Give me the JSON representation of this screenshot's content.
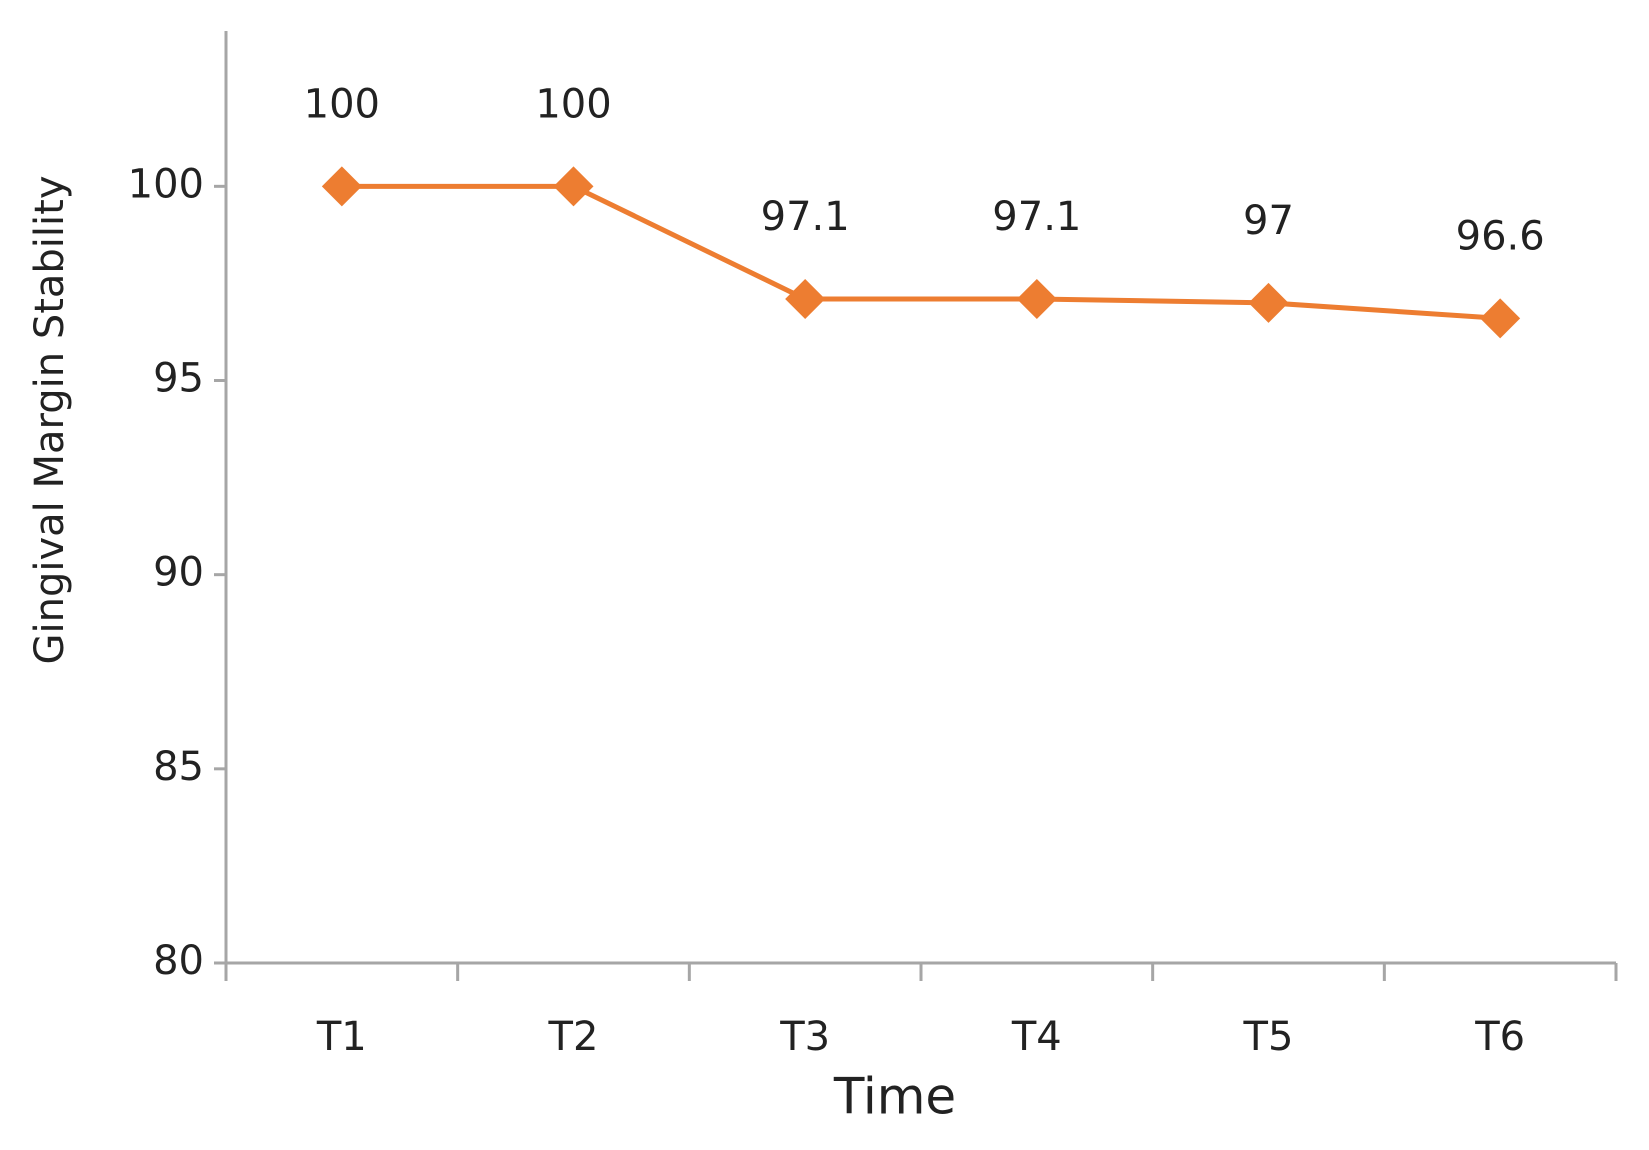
{
  "chart_data": {
    "type": "line",
    "categories": [
      "T1",
      "T2",
      "T3",
      "T4",
      "T5",
      "T6"
    ],
    "series": [
      {
        "name": "Gingival Margin Stability",
        "color": "#ed7d31",
        "values": [
          100,
          100,
          97.1,
          97.1,
          97,
          96.6
        ]
      }
    ],
    "x_label": "Time",
    "y_label": "Gingival Margin Stability",
    "ylim": [
      80,
      104
    ],
    "yticks": [
      80,
      85,
      90,
      95,
      100
    ],
    "grid": false
  }
}
